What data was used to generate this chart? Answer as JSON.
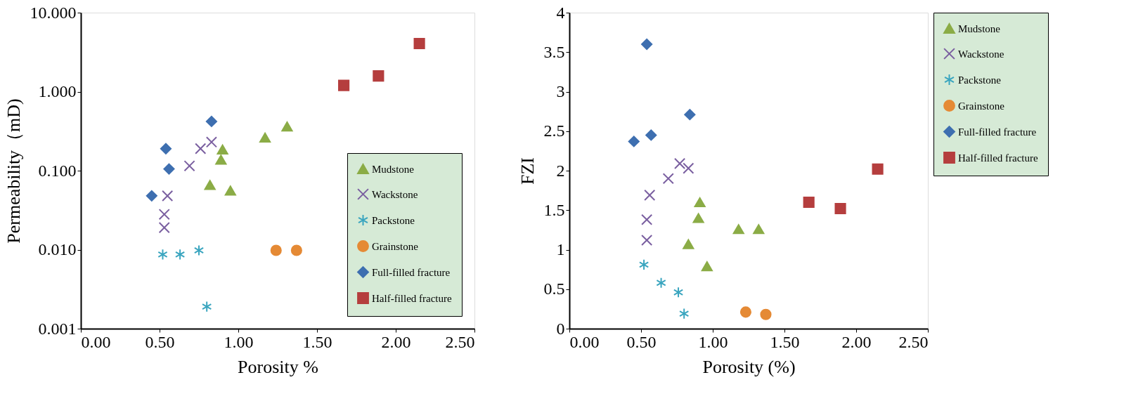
{
  "chart_data": [
    {
      "type": "scatter",
      "xlabel": "Porosity    %",
      "ylabel": "Permeability（mD)",
      "log": "y",
      "grid": false,
      "legend": "bottom right",
      "xlim": [
        0,
        2.5
      ],
      "xticks": [
        {
          "value": 0,
          "label": "0.00"
        },
        {
          "value": 0.5,
          "label": "0.50"
        },
        {
          "value": 1,
          "label": "1.00"
        },
        {
          "value": 1.5,
          "label": "1.50"
        },
        {
          "value": 2,
          "label": "2.00"
        },
        {
          "value": 2.5,
          "label": "2.50"
        }
      ],
      "ylim": [
        0.001,
        10
      ],
      "yticks": [
        {
          "value": 0.001,
          "label": "0.001"
        },
        {
          "value": 0.01,
          "label": "0.010"
        },
        {
          "value": 0.1,
          "label": "0.100"
        },
        {
          "value": 1,
          "label": "1.000"
        },
        {
          "value": 10,
          "label": "10.000"
        }
      ],
      "series": [
        {
          "name": "Mudstone",
          "color": "#8bac46",
          "marker": "triangle",
          "x": [
            0.9,
            0.89,
            0.82,
            0.95,
            1.17,
            1.31
          ],
          "values": [
            0.185,
            0.138,
            0.066,
            0.056,
            0.263,
            0.363
          ]
        },
        {
          "name": "Wackstone",
          "color": "#7a5fa0",
          "marker": "cross",
          "x": [
            0.53,
            0.53,
            0.55,
            0.69,
            0.76,
            0.83
          ],
          "values": [
            0.019,
            0.028,
            0.048,
            0.115,
            0.19,
            0.23
          ]
        },
        {
          "name": "Packstone",
          "color": "#3aa5bf",
          "x": [
            0.52,
            0.63,
            0.75,
            0.8
          ],
          "values": [
            0.0087,
            0.0087,
            0.0098,
            0.0019
          ]
        },
        {
          "name": "Grainstone",
          "color": "#e58a35",
          "marker": "circle",
          "x": [
            1.24,
            1.37
          ],
          "values": [
            0.0098,
            0.0098
          ]
        },
        {
          "name": "Full-filled fracture",
          "color": "#3e6fb0",
          "marker": "diamond",
          "x": [
            0.45,
            0.54,
            0.56,
            0.83
          ],
          "values": [
            0.048,
            0.19,
            0.105,
            0.42
          ]
        },
        {
          "name": "Half-filled fracture",
          "color": "#b53e3e",
          "marker": "square",
          "x": [
            1.67,
            1.89,
            2.15
          ],
          "values": [
            1.2,
            1.58,
            4.06
          ]
        }
      ]
    },
    {
      "type": "scatter",
      "xlabel": "Porosity (%)",
      "ylabel": "FZI",
      "grid": false,
      "legend": "right",
      "xlim": [
        0,
        2.5
      ],
      "xticks": [
        {
          "value": 0,
          "label": "0.00"
        },
        {
          "value": 0.5,
          "label": "0.50"
        },
        {
          "value": 1,
          "label": "1.00"
        },
        {
          "value": 1.5,
          "label": "1.50"
        },
        {
          "value": 2,
          "label": "2.00"
        },
        {
          "value": 2.5,
          "label": "2.50"
        }
      ],
      "ylim": [
        0,
        4
      ],
      "yticks": [
        0,
        0.5,
        1,
        1.5,
        2,
        2.5,
        3,
        3.5,
        4
      ],
      "series": [
        {
          "name": "Mudstone",
          "color": "#8bac46",
          "marker": "triangle",
          "x": [
            0.91,
            0.9,
            0.83,
            0.96,
            1.18,
            1.32
          ],
          "values": [
            1.6,
            1.4,
            1.07,
            0.79,
            1.26,
            1.26
          ]
        },
        {
          "name": "Wackstone",
          "color": "#7a5fa0",
          "marker": "cross",
          "x": [
            0.54,
            0.54,
            0.56,
            0.69,
            0.77,
            0.83
          ],
          "values": [
            1.12,
            1.38,
            1.69,
            1.9,
            2.09,
            2.03
          ]
        },
        {
          "name": "Packstone",
          "color": "#3aa5bf",
          "x": [
            0.52,
            0.64,
            0.76,
            0.8
          ],
          "values": [
            0.81,
            0.58,
            0.46,
            0.19
          ]
        },
        {
          "name": "Grainstone",
          "color": "#e58a35",
          "marker": "circle",
          "x": [
            1.23,
            1.37
          ],
          "values": [
            0.21,
            0.18
          ]
        },
        {
          "name": "Full-filled fracture",
          "color": "#3e6fb0",
          "marker": "diamond",
          "x": [
            0.54,
            0.45,
            0.57,
            0.84
          ],
          "values": [
            3.6,
            2.37,
            2.45,
            2.71
          ]
        },
        {
          "name": "Half-filled fracture",
          "color": "#b53e3e",
          "marker": "square",
          "x": [
            1.67,
            1.89,
            2.15
          ],
          "values": [
            1.6,
            1.52,
            2.02
          ]
        }
      ]
    }
  ]
}
